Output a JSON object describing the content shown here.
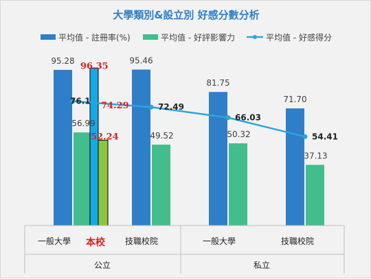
{
  "chart_data": {
    "type": "bar",
    "title": "大學類別&設立別 好感分數分析",
    "legend": [
      {
        "name": "平均值 - 註冊率(%)",
        "color": "#2e7fc8",
        "kind": "bar"
      },
      {
        "name": "平均值 - 好評影響力",
        "color": "#43bd8c",
        "kind": "bar"
      },
      {
        "name": "平均值 - 好感得分",
        "color": "#2da4dc",
        "kind": "line"
      }
    ],
    "groups": [
      "公立",
      "私立"
    ],
    "categories": [
      "一般大學",
      "技職校院",
      "一般大學",
      "技職校院"
    ],
    "category_groups": [
      0,
      0,
      1,
      1
    ],
    "series": [
      {
        "name": "平均值 - 註冊率(%)",
        "type": "bar",
        "values": [
          95.28,
          95.46,
          81.75,
          71.7
        ],
        "labels": [
          "95.28",
          "95.46",
          "81.75",
          "71.70"
        ],
        "color": "#2e7fc8"
      },
      {
        "name": "平均值 - 好評影響力",
        "type": "bar",
        "values": [
          56.99,
          49.52,
          50.32,
          37.13
        ],
        "labels": [
          "56.99",
          "49.52",
          "50.32",
          "37.13"
        ],
        "color": "#43bd8c"
      },
      {
        "name": "平均值 - 好感得分",
        "type": "line",
        "values": [
          76.1,
          72.49,
          66.03,
          54.41
        ],
        "labels": [
          "76.1",
          "72.49",
          "66.03",
          "54.41"
        ],
        "color": "#2da4dc"
      }
    ],
    "ylim": [
      0,
      120
    ],
    "overlay": {
      "label": "本校",
      "enrollment": 96.35,
      "influence": 52.24,
      "score": 74.29,
      "enrollment_label": "96.35",
      "influence_label": "52.24",
      "score_label": "74.29",
      "enrollment_color": "#17a9e6",
      "influence_color": "#8cc63f",
      "text_color": "#e02020"
    }
  }
}
